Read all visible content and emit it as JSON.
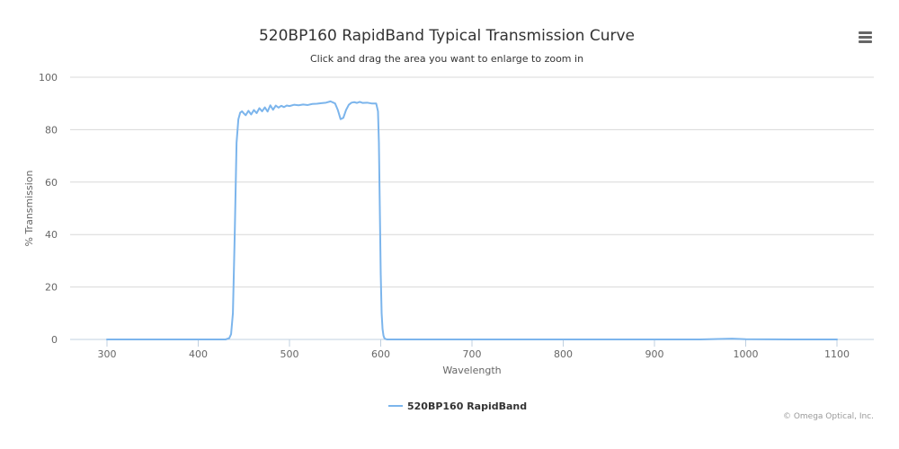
{
  "chart_data": {
    "type": "line",
    "title": "520BP160 RapidBand Typical Transmission Curve",
    "subtitle": "Click and drag the area you want to enlarge to zoom in",
    "xlabel": "Wavelength",
    "ylabel": "% Transmission",
    "xlim": [
      300,
      1100
    ],
    "ylim": [
      0,
      100
    ],
    "xticks": [
      300,
      400,
      500,
      600,
      700,
      800,
      900,
      1000,
      1100
    ],
    "yticks": [
      0,
      20,
      40,
      60,
      80,
      100
    ],
    "grid": "horizontal",
    "legend_position": "bottom-center",
    "credit": "© Omega Optical, Inc.",
    "series": [
      {
        "name": "520BP160 RapidBand",
        "color": "#7cb5ec",
        "x": [
          300,
          350,
          400,
          430,
          434,
          436,
          438,
          440,
          442,
          444,
          446,
          448,
          450,
          452,
          455,
          458,
          461,
          464,
          467,
          470,
          473,
          476,
          479,
          482,
          485,
          488,
          491,
          494,
          497,
          500,
          505,
          510,
          515,
          520,
          525,
          530,
          535,
          540,
          545,
          550,
          553,
          556,
          559,
          562,
          565,
          568,
          571,
          574,
          577,
          580,
          585,
          590,
          595,
          597,
          598,
          599,
          600,
          601,
          602,
          603,
          604,
          605,
          607,
          610,
          650,
          700,
          800,
          900,
          950,
          975,
          985,
          1000,
          1050,
          1100
        ],
        "y": [
          0,
          0,
          0,
          0,
          0.5,
          2,
          10,
          40,
          75,
          84,
          86.5,
          87,
          86.2,
          85.5,
          87.2,
          85.8,
          87.5,
          86.3,
          88.2,
          87,
          88.5,
          86.9,
          89.3,
          87.6,
          89.2,
          88.4,
          89.1,
          88.6,
          89.2,
          89,
          89.5,
          89.3,
          89.6,
          89.4,
          89.8,
          89.9,
          90.1,
          90.3,
          90.8,
          90,
          87.5,
          84,
          84.5,
          87.5,
          89.5,
          90.3,
          90.5,
          90.2,
          90.6,
          90.2,
          90.3,
          90,
          90,
          87,
          75,
          50,
          25,
          10,
          4,
          1.5,
          0.5,
          0.2,
          0,
          0,
          0,
          0,
          0,
          0,
          0,
          0.2,
          0.3,
          0.1,
          0,
          0
        ]
      }
    ]
  }
}
